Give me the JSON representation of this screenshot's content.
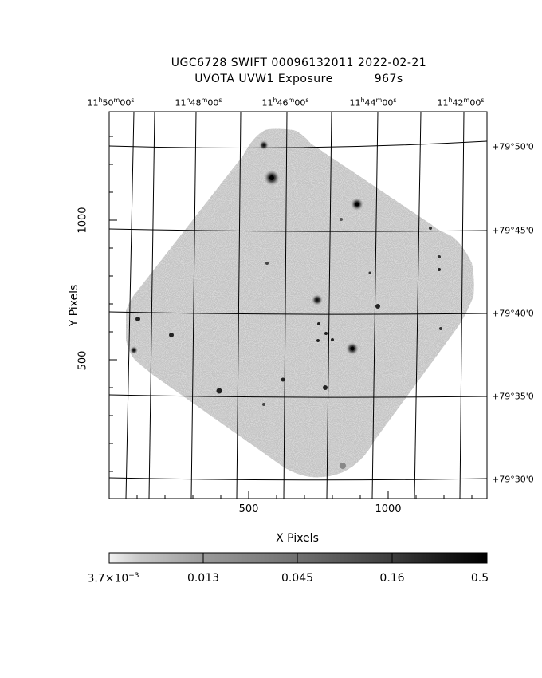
{
  "title": {
    "line1": "UGC6728 SWIFT 00096132011 2022-02-21",
    "line2_left": "UVOTA UVW1 Exposure",
    "line2_right": "967s"
  },
  "ra_ticks": [
    {
      "h": "11",
      "m": "50",
      "s": "00"
    },
    {
      "h": "11",
      "m": "48",
      "s": "00"
    },
    {
      "h": "11",
      "m": "46",
      "s": "00"
    },
    {
      "h": "11",
      "m": "44",
      "s": "00"
    },
    {
      "h": "11",
      "m": "42",
      "s": "00"
    }
  ],
  "dec_ticks": [
    "+79°50'0",
    "+79°45'0",
    "+79°40'0",
    "+79°35'0",
    "+79°30'0"
  ],
  "x_axis": {
    "label": "X Pixels",
    "ticks": [
      "500",
      "1000"
    ]
  },
  "y_axis": {
    "label": "Y Pixels",
    "ticks": [
      "1000",
      "500"
    ]
  },
  "colorbar": {
    "ticks": [
      {
        "mantissa": "3.7×10",
        "exponent": "−3"
      },
      {
        "mantissa": "0.013",
        "exponent": ""
      },
      {
        "mantissa": "0.045",
        "exponent": ""
      },
      {
        "mantissa": "0.16",
        "exponent": ""
      },
      {
        "mantissa": "0.5",
        "exponent": ""
      }
    ]
  }
}
